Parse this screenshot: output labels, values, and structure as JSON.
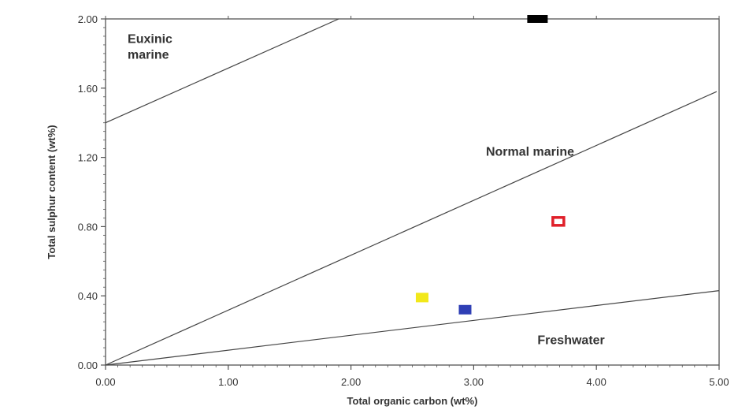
{
  "chart_data": {
    "type": "scatter",
    "xlabel": "Total organic carbon (wt%)",
    "ylabel": "Total sulphur content (wt%)",
    "xlim": [
      0,
      5
    ],
    "ylim": [
      0,
      2
    ],
    "x_ticks": [
      "0.00",
      "1.00",
      "2.00",
      "3.00",
      "4.00",
      "5.00"
    ],
    "y_ticks": [
      "0.00",
      "0.40",
      "0.80",
      "1.20",
      "1.60",
      "2.00"
    ],
    "grid": false,
    "boundary_lines": [
      {
        "points": [
          [
            0,
            1.4
          ],
          [
            1.9,
            2.0
          ]
        ]
      },
      {
        "points": [
          [
            0,
            0
          ],
          [
            4.98,
            1.58
          ]
        ]
      },
      {
        "points": [
          [
            0,
            0
          ],
          [
            5,
            0.43
          ]
        ]
      }
    ],
    "region_labels": [
      {
        "lines": [
          "Euxinic",
          "marine"
        ],
        "x": 0.18,
        "y": 1.86
      },
      {
        "lines": [
          "Normal marine"
        ],
        "x": 3.1,
        "y": 1.21
      },
      {
        "lines": [
          "Freshwater"
        ],
        "x": 3.52,
        "y": 0.12
      }
    ],
    "points": [
      {
        "x": 2.58,
        "y": 0.39,
        "color": "#f2e81a",
        "marker": "square"
      },
      {
        "x": 2.93,
        "y": 0.32,
        "color": "#2f3fb5",
        "marker": "square"
      },
      {
        "x": 3.69,
        "y": 0.83,
        "color": "#e0202a",
        "marker": "hollow-square"
      },
      {
        "x": 3.52,
        "y": 2.0,
        "color": "#000000",
        "marker": "square"
      }
    ]
  }
}
